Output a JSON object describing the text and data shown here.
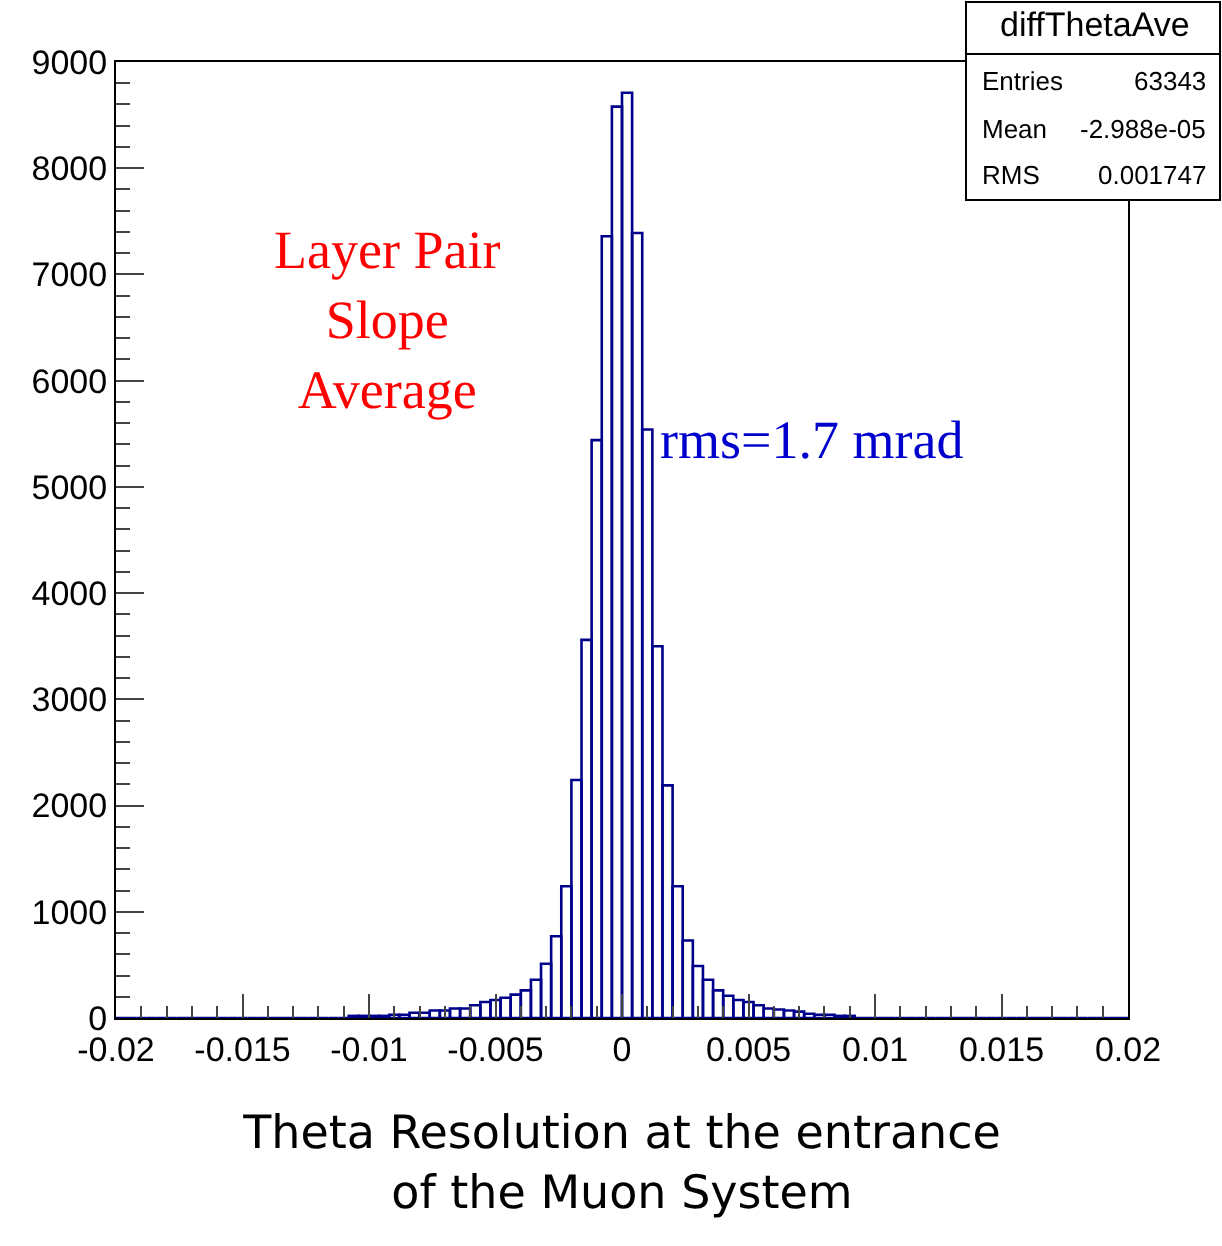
{
  "chart_data": {
    "type": "histogram",
    "xlabel": "Theta Resolution at the entrance\nof the Muon System",
    "bins": [
      -0.02,
      -0.0196,
      -0.0192,
      -0.0188,
      -0.0184,
      -0.018,
      -0.0176,
      -0.0172,
      -0.0168,
      -0.0164,
      -0.016,
      -0.0156,
      -0.0152,
      -0.0148,
      -0.0144,
      -0.014,
      -0.0136,
      -0.0132,
      -0.0128,
      -0.0124,
      -0.012,
      -0.0116,
      -0.0112,
      -0.0108,
      -0.0104,
      -0.01,
      -0.0096,
      -0.0092,
      -0.0088,
      -0.0084,
      -0.008,
      -0.0076,
      -0.0072,
      -0.0068,
      -0.0064,
      -0.006,
      -0.0056,
      -0.0052,
      -0.0048,
      -0.0044,
      -0.004,
      -0.0036,
      -0.0032,
      -0.0028,
      -0.0024,
      -0.002,
      -0.0016,
      -0.0012,
      -0.0008,
      -0.0004,
      0,
      0.0004,
      0.0008,
      0.0012,
      0.0016,
      0.002,
      0.0024,
      0.0028,
      0.0032,
      0.0036,
      0.004,
      0.0044,
      0.0048,
      0.0052,
      0.0056,
      0.006,
      0.0064,
      0.0068,
      0.0072,
      0.0076,
      0.008,
      0.0084,
      0.0088,
      0.0092,
      0.0096,
      0.01,
      0.0104,
      0.0108,
      0.0112,
      0.0116,
      0.012,
      0.0124,
      0.0128,
      0.0132,
      0.0136,
      0.014,
      0.0144,
      0.0148,
      0.0152,
      0.0156,
      0.016,
      0.0164,
      0.0168,
      0.0172,
      0.0176,
      0.018,
      0.0184,
      0.0188,
      0.0192,
      0.0196,
      0.02
    ],
    "values": [
      0,
      0,
      0,
      0,
      0,
      0,
      0,
      0,
      0,
      0,
      0,
      0,
      0,
      0,
      0,
      0,
      0,
      0,
      0,
      0,
      0,
      0,
      0,
      20,
      20,
      20,
      20,
      30,
      30,
      50,
      50,
      70,
      70,
      90,
      90,
      120,
      150,
      170,
      190,
      220,
      260,
      360,
      510,
      770,
      1240,
      2240,
      3560,
      5440,
      7360,
      8580,
      8710,
      7390,
      5540,
      3500,
      2190,
      1240,
      730,
      490,
      360,
      260,
      210,
      170,
      150,
      120,
      90,
      80,
      70,
      60,
      40,
      30,
      30,
      20,
      20,
      0,
      0,
      0,
      0,
      0,
      0,
      0,
      0,
      0,
      0,
      0,
      0,
      0,
      0,
      0,
      0,
      0,
      0,
      0,
      0,
      0,
      0,
      0,
      0,
      0,
      0,
      0
    ],
    "color": "#00008b",
    "xlim": [
      -0.02,
      0.02
    ],
    "xticks": [
      -0.02,
      -0.015,
      -0.01,
      -0.005,
      0,
      0.005,
      0.01,
      0.015,
      0.02
    ],
    "ylim": [
      0,
      9000
    ],
    "yticks": [
      0,
      1000,
      2000,
      3000,
      4000,
      5000,
      6000,
      7000,
      8000,
      9000
    ],
    "grid": false,
    "legend": false,
    "annotations": [
      "Layer Pair\nSlope\nAverage",
      "rms=1.7 mrad",
      "diffThetaAve",
      "Entries",
      "63343",
      "Mean",
      "-2.988e-05",
      "RMS",
      "0.001747"
    ]
  }
}
